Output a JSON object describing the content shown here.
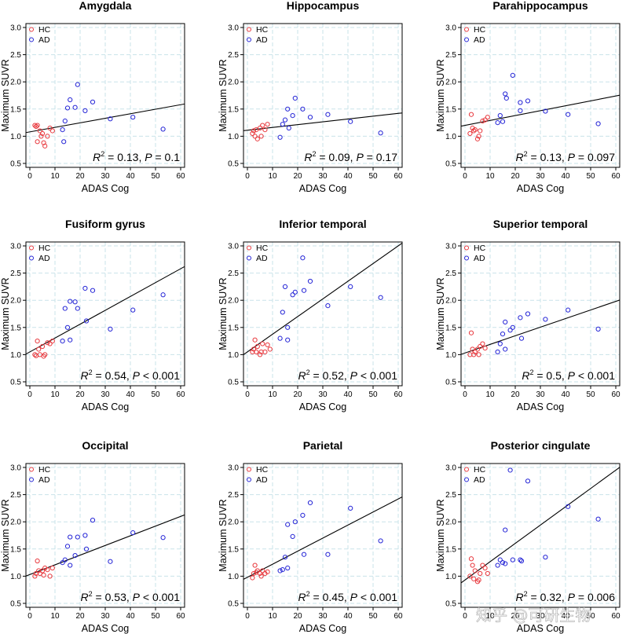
{
  "watermark": "知乎 @可研生物",
  "colors": {
    "hc": "#e8383d",
    "ad": "#2424d6"
  },
  "chart_data": [
    {
      "type": "scatter",
      "title": "Amygdala",
      "xlabel": "ADAS Cog",
      "ylabel": "Maximum SUVR",
      "xlim": [
        0,
        60
      ],
      "ylim": [
        0.5,
        3.0
      ],
      "xticks": [
        0,
        10,
        20,
        30,
        40,
        50,
        60
      ],
      "yticks": [
        0.5,
        1.0,
        1.5,
        2.0,
        2.5,
        3.0
      ],
      "legend": [
        "HC",
        "AD"
      ],
      "series": [
        {
          "name": "HC",
          "x": [
            2,
            2.5,
            3,
            3,
            4,
            4.5,
            5,
            5.5,
            6,
            7,
            8,
            9
          ],
          "y": [
            1.2,
            1.18,
            1.2,
            0.9,
            1.1,
            1.0,
            1.05,
            0.88,
            0.82,
            1.0,
            1.15,
            1.1
          ]
        },
        {
          "name": "AD",
          "x": [
            13,
            14,
            15,
            16,
            18,
            19,
            22,
            25,
            32,
            41,
            53,
            13.5
          ],
          "y": [
            1.12,
            1.28,
            1.52,
            1.67,
            1.53,
            1.95,
            1.47,
            1.63,
            1.32,
            1.35,
            1.13,
            0.9
          ]
        }
      ],
      "regression": {
        "y_at_0": 1.08,
        "y_at_60": 1.58
      },
      "stat": {
        "r2": "0.13",
        "p": "= 0.1"
      }
    },
    {
      "type": "scatter",
      "title": "Hippocampus",
      "xlabel": "ADAS Cog",
      "ylabel": "Maximum SUVR",
      "xlim": [
        0,
        60
      ],
      "ylim": [
        0.5,
        3.0
      ],
      "xticks": [
        0,
        10,
        20,
        30,
        40,
        50,
        60
      ],
      "yticks": [
        0.5,
        1.0,
        1.5,
        2.0,
        2.5,
        3.0
      ],
      "legend": [
        "HC",
        "AD"
      ],
      "series": [
        {
          "name": "HC",
          "x": [
            2,
            2.5,
            3,
            3.5,
            4,
            5,
            5.5,
            6,
            7,
            8
          ],
          "y": [
            1.05,
            1.1,
            1.0,
            1.12,
            0.95,
            1.15,
            1.0,
            1.2,
            1.12,
            1.22
          ]
        },
        {
          "name": "AD",
          "x": [
            13,
            14,
            15,
            16,
            18,
            19,
            22,
            25,
            32,
            41,
            53,
            16.5
          ],
          "y": [
            0.98,
            1.22,
            1.3,
            1.5,
            1.38,
            1.7,
            1.5,
            1.35,
            1.4,
            1.27,
            1.06,
            1.15
          ]
        }
      ],
      "regression": {
        "y_at_0": 1.11,
        "y_at_60": 1.42
      },
      "stat": {
        "r2": "0.09",
        "p": "= 0.17"
      }
    },
    {
      "type": "scatter",
      "title": "Parahippocampus",
      "xlabel": "ADAS Cog",
      "ylabel": "Maximum SUVR",
      "xlim": [
        0,
        60
      ],
      "ylim": [
        0.5,
        3.0
      ],
      "xticks": [
        0,
        10,
        20,
        30,
        40,
        50,
        60
      ],
      "yticks": [
        0.5,
        1.0,
        1.5,
        2.0,
        2.5,
        3.0
      ],
      "legend": [
        "HC",
        "AD"
      ],
      "series": [
        {
          "name": "HC",
          "x": [
            2,
            2.5,
            3,
            3.5,
            4,
            5,
            5.5,
            6,
            7,
            8,
            9
          ],
          "y": [
            1.05,
            1.4,
            1.15,
            1.1,
            1.12,
            0.95,
            1.0,
            1.1,
            1.28,
            1.3,
            1.35
          ]
        },
        {
          "name": "AD",
          "x": [
            13,
            14,
            15,
            16,
            16.5,
            19,
            22,
            25,
            32,
            41,
            53,
            22
          ],
          "y": [
            1.25,
            1.38,
            1.27,
            1.78,
            1.7,
            2.12,
            1.47,
            1.65,
            1.46,
            1.4,
            1.23,
            1.62
          ]
        }
      ],
      "regression": {
        "y_at_0": 1.2,
        "y_at_60": 1.74
      },
      "stat": {
        "r2": "0.13",
        "p": "= 0.097"
      }
    },
    {
      "type": "scatter",
      "title": "Fusiform gyrus",
      "xlabel": "ADAS Cog",
      "ylabel": "Maximum SUVR",
      "xlim": [
        0,
        60
      ],
      "ylim": [
        0.5,
        3.0
      ],
      "xticks": [
        0,
        10,
        20,
        30,
        40,
        50,
        60
      ],
      "yticks": [
        0.5,
        1.0,
        1.5,
        2.0,
        2.5,
        3.0
      ],
      "legend": [
        "HC",
        "AD"
      ],
      "series": [
        {
          "name": "HC",
          "x": [
            2,
            2.5,
            3,
            3.5,
            4,
            5,
            5.5,
            6,
            7,
            8,
            9
          ],
          "y": [
            1.0,
            0.98,
            1.25,
            1.1,
            1.0,
            1.15,
            0.97,
            1.0,
            1.22,
            1.2,
            1.25
          ]
        },
        {
          "name": "AD",
          "x": [
            13,
            14,
            15,
            16,
            18,
            19,
            22,
            22.5,
            25,
            32,
            41,
            53,
            16
          ],
          "y": [
            1.25,
            1.85,
            1.5,
            1.98,
            1.97,
            1.85,
            2.22,
            1.62,
            2.18,
            1.47,
            1.82,
            2.1,
            1.27
          ]
        }
      ],
      "regression": {
        "y_at_0": 1.05,
        "y_at_60": 2.58
      },
      "stat": {
        "r2": "0.54",
        "p": "< 0.001"
      }
    },
    {
      "type": "scatter",
      "title": "Inferior temporal",
      "xlabel": "ADAS Cog",
      "ylabel": "Maximum SUVR",
      "xlim": [
        0,
        60
      ],
      "ylim": [
        0.5,
        3.0
      ],
      "xticks": [
        0,
        10,
        20,
        30,
        40,
        50,
        60
      ],
      "yticks": [
        0.5,
        1.0,
        1.5,
        2.0,
        2.5,
        3.0
      ],
      "legend": [
        "HC",
        "AD"
      ],
      "series": [
        {
          "name": "HC",
          "x": [
            2,
            2.5,
            3,
            3.5,
            4,
            5,
            5.5,
            6,
            7,
            8,
            9
          ],
          "y": [
            1.05,
            1.1,
            1.27,
            1.05,
            1.15,
            1.0,
            1.05,
            1.2,
            1.05,
            1.18,
            1.1
          ]
        },
        {
          "name": "AD",
          "x": [
            13,
            14,
            15,
            16,
            18,
            19,
            22,
            22.5,
            25,
            32,
            41,
            53,
            16
          ],
          "y": [
            1.3,
            1.78,
            2.25,
            1.5,
            2.1,
            2.15,
            2.78,
            2.18,
            2.35,
            1.9,
            2.25,
            2.05,
            1.27
          ]
        }
      ],
      "regression": {
        "y_at_0": 1.05,
        "y_at_60": 3.0
      },
      "stat": {
        "r2": "0.52",
        "p": "< 0.001"
      }
    },
    {
      "type": "scatter",
      "title": "Superior temporal",
      "xlabel": "ADAS Cog",
      "ylabel": "Maximum SUVR",
      "xlim": [
        0,
        60
      ],
      "ylim": [
        0.5,
        3.0
      ],
      "xticks": [
        0,
        10,
        20,
        30,
        40,
        50,
        60
      ],
      "yticks": [
        0.5,
        1.0,
        1.5,
        2.0,
        2.5,
        3.0
      ],
      "legend": [
        "HC",
        "AD"
      ],
      "series": [
        {
          "name": "HC",
          "x": [
            2,
            2.5,
            3,
            3.5,
            4,
            5,
            5.5,
            6,
            7,
            8
          ],
          "y": [
            1.0,
            1.4,
            1.1,
            1.0,
            1.05,
            1.1,
            1.0,
            1.15,
            1.2,
            1.12
          ]
        },
        {
          "name": "AD",
          "x": [
            13,
            14,
            15,
            16,
            18,
            19,
            22,
            22.5,
            25,
            32,
            41,
            53,
            16
          ],
          "y": [
            1.05,
            1.2,
            1.38,
            1.6,
            1.45,
            1.5,
            1.68,
            1.3,
            1.75,
            1.65,
            1.82,
            1.47,
            1.1
          ]
        }
      ],
      "regression": {
        "y_at_0": 1.03,
        "y_at_60": 1.98
      },
      "stat": {
        "r2": "0.5",
        "p": "< 0.001"
      }
    },
    {
      "type": "scatter",
      "title": "Occipital",
      "xlabel": "ADAS Cog",
      "ylabel": "Maximum SUVR",
      "xlim": [
        0,
        60
      ],
      "ylim": [
        0.5,
        3.0
      ],
      "xticks": [
        0,
        10,
        20,
        30,
        40,
        50,
        60
      ],
      "yticks": [
        0.5,
        1.0,
        1.5,
        2.0,
        2.5,
        3.0
      ],
      "legend": [
        "HC",
        "AD"
      ],
      "series": [
        {
          "name": "HC",
          "x": [
            2,
            2.5,
            3,
            3.5,
            4,
            5,
            5.5,
            6,
            7,
            8,
            9
          ],
          "y": [
            1.0,
            1.05,
            1.28,
            1.1,
            1.05,
            1.1,
            1.02,
            1.15,
            1.12,
            1.0,
            1.15
          ]
        },
        {
          "name": "AD",
          "x": [
            13,
            14,
            15,
            16,
            18,
            19,
            22,
            22.5,
            25,
            32,
            41,
            53,
            16
          ],
          "y": [
            1.25,
            1.3,
            1.55,
            1.72,
            1.38,
            1.72,
            1.75,
            1.5,
            2.03,
            1.27,
            1.8,
            1.71,
            1.2
          ]
        }
      ],
      "regression": {
        "y_at_0": 1.03,
        "y_at_60": 2.1
      },
      "stat": {
        "r2": "0.53",
        "p": "< 0.001"
      }
    },
    {
      "type": "scatter",
      "title": "Parietal",
      "xlabel": "ADAS Cog",
      "ylabel": "Maximum SUVR",
      "xlim": [
        0,
        60
      ],
      "ylim": [
        0.5,
        3.0
      ],
      "xticks": [
        0,
        10,
        20,
        30,
        40,
        50,
        60
      ],
      "yticks": [
        0.5,
        1.0,
        1.5,
        2.0,
        2.5,
        3.0
      ],
      "legend": [
        "HC",
        "AD"
      ],
      "series": [
        {
          "name": "HC",
          "x": [
            2,
            2.5,
            3,
            3.5,
            4,
            5,
            5.5,
            6,
            7,
            8
          ],
          "y": [
            0.97,
            1.05,
            1.2,
            1.07,
            1.1,
            1.05,
            1.0,
            1.1,
            1.05,
            1.08
          ]
        },
        {
          "name": "AD",
          "x": [
            13,
            14,
            15,
            16,
            18,
            19,
            22,
            22.5,
            25,
            32,
            41,
            53,
            16
          ],
          "y": [
            1.1,
            1.12,
            1.35,
            1.95,
            1.73,
            2.0,
            2.12,
            1.4,
            2.35,
            1.4,
            2.25,
            1.65,
            1.15
          ]
        }
      ],
      "regression": {
        "y_at_0": 0.98,
        "y_at_60": 2.42
      },
      "stat": {
        "r2": "0.45",
        "p": "< 0.001"
      }
    },
    {
      "type": "scatter",
      "title": "Posterior cingulate",
      "xlabel": "ADAS Cog",
      "ylabel": "Maximum SUVR",
      "xlim": [
        0,
        60
      ],
      "ylim": [
        0.5,
        3.0
      ],
      "xticks": [
        0,
        10,
        20,
        30,
        40,
        50,
        60
      ],
      "yticks": [
        0.5,
        1.0,
        1.5,
        2.0,
        2.5,
        3.0
      ],
      "legend": [
        "HC",
        "AD"
      ],
      "series": [
        {
          "name": "HC",
          "x": [
            2,
            2.5,
            3,
            3.5,
            4,
            5,
            5.5,
            6,
            7,
            8,
            9
          ],
          "y": [
            1.0,
            1.32,
            1.2,
            0.95,
            1.1,
            0.9,
            0.93,
            1.05,
            1.2,
            1.15,
            1.05
          ]
        },
        {
          "name": "AD",
          "x": [
            13,
            14,
            15,
            16,
            18,
            19,
            22,
            22.5,
            25,
            32,
            41,
            53,
            16
          ],
          "y": [
            1.2,
            1.3,
            1.25,
            1.85,
            2.95,
            1.3,
            1.3,
            1.28,
            2.75,
            1.35,
            2.28,
            2.05,
            1.23
          ]
        }
      ],
      "regression": {
        "y_at_0": 0.93,
        "y_at_60": 2.95
      },
      "stat": {
        "r2": "0.32",
        "p": "= 0.006"
      }
    }
  ]
}
